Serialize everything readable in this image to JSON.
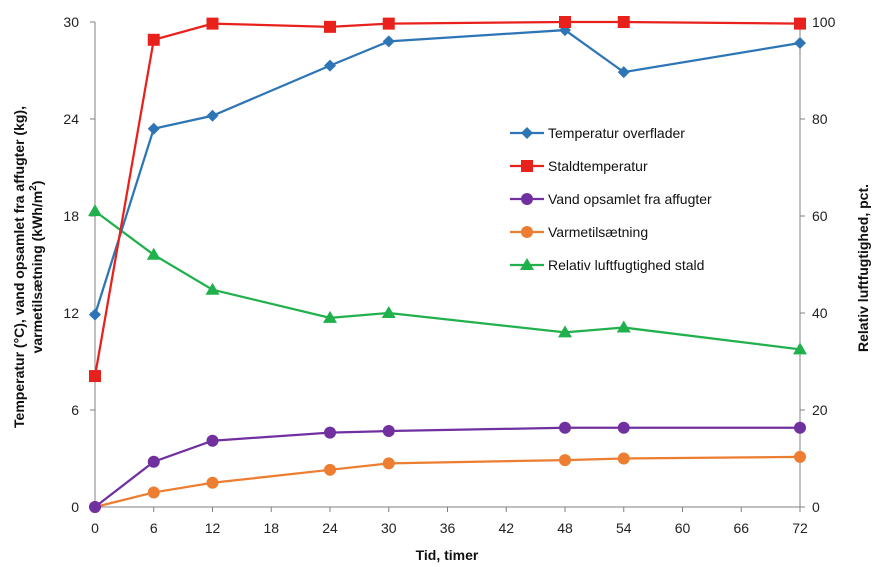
{
  "chart_data": {
    "type": "line",
    "title": "",
    "xlabel": "Tid, timer",
    "ylabel_left_line1": "Temperatur (°C), vand opsamlet fra affugter (kg),",
    "ylabel_left_line2": "varmetilsætning (kWh/m",
    "ylabel_left_sup": "2",
    "ylabel_left_close": ")",
    "ylabel_right": "Relativ luftfugtighed, pct.",
    "xlim": [
      0,
      72
    ],
    "ylim_left": [
      0,
      30
    ],
    "ylim_right": [
      0,
      100
    ],
    "x_ticks": [
      "0",
      "6",
      "12",
      "18",
      "24",
      "30",
      "36",
      "42",
      "48",
      "54",
      "60",
      "66",
      "72"
    ],
    "y_left_ticks": [
      "0",
      "6",
      "12",
      "18",
      "24",
      "30"
    ],
    "y_right_ticks": [
      "0",
      "20",
      "40",
      "60",
      "80",
      "100"
    ],
    "grid": false,
    "legend_position": "right",
    "series": [
      {
        "name": "Temperatur overflader",
        "axis": "left",
        "color": "#2e75b6",
        "marker": "diamond",
        "x": [
          0,
          6,
          12,
          24,
          30,
          48,
          54,
          72
        ],
        "y": [
          11.9,
          23.4,
          24.2,
          27.3,
          28.8,
          29.5,
          26.9,
          28.7
        ]
      },
      {
        "name": "Staldtemperatur",
        "axis": "left",
        "color": "#e8211d",
        "marker": "square",
        "x": [
          0,
          6,
          12,
          24,
          30,
          48,
          54,
          72
        ],
        "y": [
          8.1,
          28.9,
          29.9,
          29.7,
          29.9,
          30.0,
          30.0,
          29.9
        ]
      },
      {
        "name": "Vand opsamlet fra affugter",
        "axis": "left",
        "color": "#7030a0",
        "marker": "circle",
        "x": [
          0,
          6,
          12,
          24,
          30,
          48,
          54,
          72
        ],
        "y": [
          0.0,
          2.8,
          4.1,
          4.6,
          4.7,
          4.9,
          4.9,
          4.9
        ]
      },
      {
        "name": "Varmetilsætning",
        "axis": "left",
        "color": "#ed7d31",
        "marker": "circle",
        "x": [
          0,
          6,
          12,
          24,
          30,
          48,
          54,
          72
        ],
        "y": [
          0.0,
          0.9,
          1.5,
          2.3,
          2.7,
          2.9,
          3.0,
          3.1
        ]
      },
      {
        "name": "Relativ luftfugtighed stald",
        "axis": "right",
        "color": "#21b14c",
        "marker": "triangle",
        "x": [
          0,
          6,
          12,
          24,
          30,
          48,
          54,
          72
        ],
        "y": [
          61.0,
          52.0,
          44.8,
          39.0,
          40.0,
          36.0,
          37.0,
          32.5
        ]
      }
    ]
  }
}
